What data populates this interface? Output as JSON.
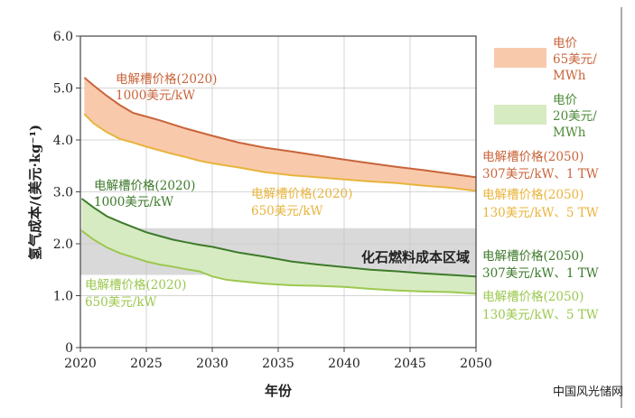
{
  "chart_data": {
    "type": "area",
    "xlabel": "年份",
    "ylabel": "氢气成本/(美元·kg⁻¹)",
    "xlim": [
      2020,
      2050
    ],
    "ylim": [
      0,
      6.0
    ],
    "x_ticks": [
      "2020",
      "2025",
      "2030",
      "2035",
      "2040",
      "2045",
      "2050"
    ],
    "y_ticks": [
      "0",
      "1.0",
      "2.0",
      "3.0",
      "4.0",
      "5.0",
      "6.0"
    ],
    "grid": true,
    "legend_position": "right",
    "fossil_band": {
      "label": "化石燃料成本区域",
      "y_range": [
        1.4,
        2.3
      ],
      "color": "#d9d9d9"
    },
    "bands": [
      {
        "legend": [
          "电价",
          "65美元/",
          "MWh"
        ],
        "fill_color": "#f9c9ac",
        "upper": {
          "color": "#c8643a",
          "x": [
            2020.3,
            2021,
            2022,
            2023,
            2024,
            2025,
            2026,
            2027,
            2028,
            2029,
            2030,
            2032,
            2034,
            2036,
            2038,
            2040,
            2042,
            2044,
            2046,
            2048,
            2050
          ],
          "y": [
            5.2,
            5.05,
            4.85,
            4.67,
            4.52,
            4.45,
            4.38,
            4.3,
            4.22,
            4.15,
            4.08,
            3.95,
            3.85,
            3.78,
            3.7,
            3.62,
            3.55,
            3.48,
            3.42,
            3.35,
            3.28
          ]
        },
        "lower": {
          "color": "#e8b43c",
          "x": [
            2020.3,
            2021,
            2022,
            2023,
            2024,
            2025,
            2026,
            2027,
            2028,
            2029,
            2030,
            2032,
            2034,
            2036,
            2038,
            2040,
            2042,
            2044,
            2046,
            2048,
            2050
          ],
          "y": [
            4.5,
            4.32,
            4.15,
            4.02,
            3.95,
            3.87,
            3.8,
            3.73,
            3.67,
            3.6,
            3.55,
            3.47,
            3.38,
            3.32,
            3.28,
            3.24,
            3.2,
            3.17,
            3.12,
            3.08,
            3.02
          ]
        }
      },
      {
        "legend": [
          "电价",
          "20美元/",
          "MWh"
        ],
        "fill_color": "#d7ebc2",
        "upper": {
          "color": "#3d7a2a",
          "x": [
            2020.1,
            2021,
            2022,
            2023,
            2024,
            2025,
            2026,
            2027,
            2028,
            2029,
            2030,
            2032,
            2034,
            2036,
            2038,
            2040,
            2042,
            2044,
            2046,
            2048,
            2050
          ],
          "y": [
            2.87,
            2.7,
            2.53,
            2.42,
            2.32,
            2.22,
            2.15,
            2.08,
            2.03,
            1.98,
            1.94,
            1.83,
            1.75,
            1.66,
            1.6,
            1.55,
            1.5,
            1.47,
            1.43,
            1.4,
            1.37
          ]
        },
        "lower": {
          "color": "#9cc84f",
          "x": [
            2020.1,
            2021,
            2022,
            2023,
            2024,
            2025,
            2026,
            2027,
            2028,
            2029,
            2030,
            2031,
            2032,
            2034,
            2036,
            2038,
            2040,
            2042,
            2044,
            2046,
            2048,
            2050
          ],
          "y": [
            2.25,
            2.08,
            1.93,
            1.82,
            1.74,
            1.66,
            1.6,
            1.56,
            1.51,
            1.47,
            1.37,
            1.31,
            1.28,
            1.23,
            1.2,
            1.19,
            1.17,
            1.13,
            1.1,
            1.08,
            1.07,
            1.04
          ]
        }
      }
    ],
    "annotations": [
      {
        "lines": [
          "电解槽价格(2020)",
          "1000美元/kW"
        ],
        "color": "#c8643a"
      },
      {
        "lines": [
          "电解槽价格(2020)",
          "650美元/kW"
        ],
        "color": "#e8b43c"
      },
      {
        "lines": [
          "电解槽价格(2020)",
          "1000美元/kW"
        ],
        "color": "#3d7a2a"
      },
      {
        "lines": [
          "电解槽价格(2020)",
          "650美元/kW"
        ],
        "color": "#9cc84f"
      },
      {
        "lines": [
          "电解槽价格(2050)",
          "307美元/kW、1 TW"
        ],
        "color": "#c8643a"
      },
      {
        "lines": [
          "电解槽价格(2050)",
          "130美元/kW、5 TW"
        ],
        "color": "#e8b43c"
      },
      {
        "lines": [
          "电解槽价格(2050)",
          "307美元/kW、1 TW"
        ],
        "color": "#3d7a2a"
      },
      {
        "lines": [
          "电解槽价格(2050)",
          "130美元/kW、5 TW"
        ],
        "color": "#9cc84f"
      }
    ]
  },
  "watermark": "中国风光储网"
}
